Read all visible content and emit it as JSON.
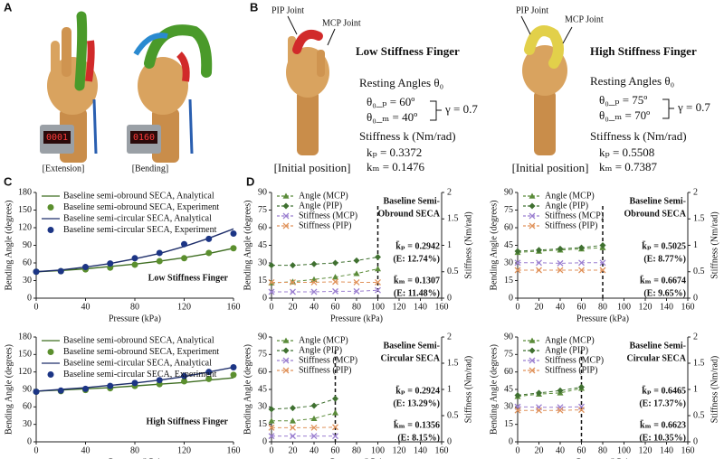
{
  "figure": {
    "panel_labels": [
      "A",
      "B",
      "C",
      "D"
    ],
    "panel_a": {
      "captions": [
        "[Extension]",
        "[Bending]"
      ],
      "displays": [
        "0001",
        "0160"
      ]
    },
    "panel_b": {
      "low": {
        "pip_label": "PIP Joint",
        "mcp_label": "MCP Joint",
        "title": "Low Stiffness Finger",
        "resting": "Resting Angles θ₀",
        "theta_p": "θ₀_ₚ = 60º",
        "theta_m": "θ₀_ₘ = 40º",
        "gamma": "γ = 0.7",
        "stiffness": "Stiffness k (Nm/rad)",
        "kp": "kₚ = 0.3372",
        "km": "kₘ = 0.1476",
        "caption": "[Initial position]"
      },
      "high": {
        "pip_label": "PIP Joint",
        "mcp_label": "MCP Joint",
        "title": "High Stiffness Finger",
        "resting": "Resting Angles θ₀",
        "theta_p": "θ₀_ₚ = 75º",
        "theta_m": "θ₀_ₘ = 70º",
        "gamma": "γ = 0.7",
        "stiffness": "Stiffness k (Nm/rad)",
        "kp": "kₚ = 0.5508",
        "km": "kₘ = 0.7387",
        "caption": "[Initial position]"
      }
    }
  },
  "chart_data": [
    {
      "type": "line",
      "x": [
        0,
        20,
        40,
        60,
        80,
        100,
        120,
        140,
        160
      ],
      "xlim": [
        0,
        160
      ],
      "xticks": [
        0,
        40,
        80,
        120,
        160
      ],
      "ylim": [
        0,
        180
      ],
      "yticks": [
        0,
        30,
        60,
        90,
        120,
        150,
        180
      ],
      "xlabel": "Pressure (kPa)",
      "ylabel": "Bending Angle (degrees)",
      "legend": "upper left",
      "annotations": [
        "Low Stiffness Finger"
      ],
      "series": [
        {
          "name": "Baseline semi-obround SECA, Analytical",
          "color": "#3f6e22",
          "style": "line",
          "values": [
            45,
            47,
            50,
            54,
            58,
            63,
            69,
            76,
            85
          ]
        },
        {
          "name": "Baseline semi-obround SECA, Experiment",
          "color": "#5b8f2e",
          "style": "markers",
          "marker": "circle",
          "values": [
            45,
            46,
            49,
            52,
            57,
            63,
            68,
            77,
            85
          ]
        },
        {
          "name": "Baseline semi-circular SECA, Analytical",
          "color": "#1f2f6b",
          "style": "line",
          "values": [
            45,
            48,
            53,
            59,
            67,
            76,
            88,
            102,
            118
          ]
        },
        {
          "name": "Baseline semi-circular SECA, Experiment",
          "color": "#1c3585",
          "style": "markers",
          "marker": "circle",
          "values": [
            45,
            46,
            53,
            59,
            68,
            77,
            92,
            101,
            110
          ]
        }
      ]
    },
    {
      "type": "line",
      "x": [
        0,
        20,
        40,
        60,
        80,
        100,
        120,
        140,
        160
      ],
      "xlim": [
        0,
        160
      ],
      "xticks": [
        0,
        40,
        80,
        120,
        160
      ],
      "ylim": [
        0,
        180
      ],
      "yticks": [
        0,
        30,
        60,
        90,
        120,
        150,
        180
      ],
      "xlabel": "Pressure (kPa)",
      "ylabel": "Bending Angle (degrees)",
      "legend": "upper left",
      "annotations": [
        "High Stiffness Finger"
      ],
      "series": [
        {
          "name": "Baseline semi-obround SECA, Analytical",
          "color": "#3f6e22",
          "style": "line",
          "values": [
            87,
            89,
            91,
            93,
            96,
            99,
            102,
            106,
            110
          ]
        },
        {
          "name": "Baseline semi-obround SECA, Experiment",
          "color": "#5b8f2e",
          "style": "markers",
          "marker": "circle",
          "values": [
            86,
            87,
            89,
            92,
            96,
            99,
            104,
            108,
            115
          ]
        },
        {
          "name": "Baseline semi-circular SECA, Analytical",
          "color": "#1f2f6b",
          "style": "line",
          "values": [
            87,
            90,
            93,
            97,
            101,
            106,
            112,
            120,
            128
          ]
        },
        {
          "name": "Baseline semi-circular SECA, Experiment",
          "color": "#1c3585",
          "style": "markers",
          "marker": "circle",
          "values": [
            86,
            88,
            91,
            96,
            101,
            106,
            113,
            120,
            128
          ]
        }
      ]
    },
    {
      "type": "line",
      "x": [
        0,
        20,
        40,
        60,
        80,
        100
      ],
      "xlim": [
        0,
        160
      ],
      "xticks": [
        0,
        20,
        40,
        60,
        80,
        100,
        120,
        140,
        160
      ],
      "ylim": [
        0,
        90
      ],
      "yticks": [
        0,
        15,
        30,
        45,
        60,
        75,
        90
      ],
      "y2lim": [
        0,
        2
      ],
      "y2ticks": [
        0,
        0.5,
        1,
        1.5,
        2
      ],
      "xlabel": "Pressure (kPa)",
      "ylabel": "Bending Angle (degrees)",
      "y2label": "Stiffness (Nm/rad)",
      "legend": "upper left",
      "vline": 100,
      "annotations": [
        "Baseline Semi-",
        "Obround SECA",
        "k̄ₚ = 0.2942",
        "(E: 12.74%)",
        "k̄ₘ = 0.1307",
        "(E: 11.48%)"
      ],
      "series": [
        {
          "name": "Angle (MCP)",
          "color": "#5b8c3a",
          "marker": "triangle",
          "dashed": true,
          "values": [
            13,
            14,
            16,
            18,
            21,
            25
          ]
        },
        {
          "name": "Angle (PIP)",
          "color": "#3f7030",
          "marker": "diamond",
          "dashed": true,
          "values": [
            28,
            28,
            29,
            30,
            32,
            35
          ]
        },
        {
          "name": "Stiffness (MCP)",
          "color": "#9b7fd0",
          "marker": "x",
          "dashed": true,
          "axis": "y2",
          "values": [
            0.12,
            0.12,
            0.12,
            0.13,
            0.13,
            0.15
          ]
        },
        {
          "name": "Stiffness (PIP)",
          "color": "#e0925a",
          "marker": "x",
          "dashed": true,
          "axis": "y2",
          "values": [
            0.3,
            0.3,
            0.3,
            0.31,
            0.3,
            0.3
          ]
        }
      ]
    },
    {
      "type": "line",
      "x": [
        0,
        20,
        40,
        60,
        80
      ],
      "xlim": [
        0,
        160
      ],
      "xticks": [
        0,
        20,
        40,
        60,
        80,
        100,
        120,
        140,
        160
      ],
      "ylim": [
        0,
        90
      ],
      "yticks": [
        0,
        15,
        30,
        45,
        60,
        75,
        90
      ],
      "y2lim": [
        0,
        2
      ],
      "y2ticks": [
        0,
        0.5,
        1,
        1.5,
        2
      ],
      "xlabel": "Pressure (kPa)",
      "ylabel": "Bending Angle (degrees)",
      "y2label": "Stiffness (Nm/rad)",
      "legend": "upper left",
      "vline": 80,
      "annotations": [
        "Baseline Semi-",
        "Obround SECA",
        "k̄ₚ = 0.5025",
        "(E: 8.77%)",
        "k̄ₘ = 0.6674",
        "(E: 9.65%)"
      ],
      "series": [
        {
          "name": "Angle (MCP)",
          "color": "#5b8c3a",
          "marker": "triangle",
          "dashed": true,
          "values": [
            39,
            40,
            41,
            42,
            43
          ]
        },
        {
          "name": "Angle (PIP)",
          "color": "#3f7030",
          "marker": "diamond",
          "dashed": true,
          "values": [
            40,
            41,
            42,
            43,
            45
          ]
        },
        {
          "name": "Stiffness (MCP)",
          "color": "#9b7fd0",
          "marker": "x",
          "dashed": true,
          "axis": "y2",
          "values": [
            0.67,
            0.67,
            0.66,
            0.67,
            0.67
          ]
        },
        {
          "name": "Stiffness (PIP)",
          "color": "#e0925a",
          "marker": "x",
          "dashed": true,
          "axis": "y2",
          "values": [
            0.53,
            0.53,
            0.53,
            0.53,
            0.53
          ]
        }
      ]
    },
    {
      "type": "line",
      "x": [
        0,
        20,
        40,
        60
      ],
      "xlim": [
        0,
        160
      ],
      "xticks": [
        0,
        20,
        40,
        60,
        80,
        100,
        120,
        140,
        160
      ],
      "ylim": [
        0,
        90
      ],
      "yticks": [
        0,
        15,
        30,
        45,
        60,
        75,
        90
      ],
      "y2lim": [
        0,
        2
      ],
      "y2ticks": [
        0,
        0.5,
        1,
        1.5,
        2
      ],
      "xlabel": "Pressure (kPa)",
      "ylabel": "Bending Angle (degrees)",
      "y2label": "Stiffness (Nm/rad)",
      "legend": "upper left",
      "vline": 60,
      "annotations": [
        "Baseline Semi-",
        "Circular SECA",
        "k̄ₚ = 0.2924",
        "(E: 13.29%)",
        "k̄ₘ = 0.1356",
        "(E: 8.15%)"
      ],
      "series": [
        {
          "name": "Angle (MCP)",
          "color": "#5b8c3a",
          "marker": "triangle",
          "dashed": true,
          "values": [
            18,
            18,
            20,
            25
          ]
        },
        {
          "name": "Angle (PIP)",
          "color": "#3f7030",
          "marker": "diamond",
          "dashed": true,
          "values": [
            28,
            29,
            31,
            37
          ]
        },
        {
          "name": "Stiffness (MCP)",
          "color": "#9b7fd0",
          "marker": "x",
          "dashed": true,
          "axis": "y2",
          "values": [
            0.11,
            0.11,
            0.11,
            0.11
          ]
        },
        {
          "name": "Stiffness (PIP)",
          "color": "#e0925a",
          "marker": "x",
          "dashed": true,
          "axis": "y2",
          "values": [
            0.27,
            0.27,
            0.27,
            0.28
          ]
        }
      ]
    },
    {
      "type": "line",
      "x": [
        0,
        20,
        40,
        60
      ],
      "xlim": [
        0,
        160
      ],
      "xticks": [
        0,
        20,
        40,
        60,
        80,
        100,
        120,
        140,
        160
      ],
      "ylim": [
        0,
        90
      ],
      "yticks": [
        0,
        15,
        30,
        45,
        60,
        75,
        90
      ],
      "y2lim": [
        0,
        2
      ],
      "y2ticks": [
        0,
        0.5,
        1,
        1.5,
        2
      ],
      "xlabel": "Pressure (kPa)",
      "ylabel": "Bending Angle (degrees)",
      "y2label": "Stiffness (Nm/rad)",
      "legend": "upper left",
      "vline": 60,
      "annotations": [
        "Baseline Semi-",
        "Circular SECA",
        "k̄ₚ = 0.6465",
        "(E: 17.37%)",
        "k̄ₘ = 0.6623",
        "(E: 10.35%)"
      ],
      "series": [
        {
          "name": "Angle (MCP)",
          "color": "#5b8c3a",
          "marker": "triangle",
          "dashed": true,
          "values": [
            39,
            41,
            42,
            46
          ]
        },
        {
          "name": "Angle (PIP)",
          "color": "#3f7030",
          "marker": "diamond",
          "dashed": true,
          "values": [
            40,
            42,
            44,
            47
          ]
        },
        {
          "name": "Stiffness (MCP)",
          "color": "#9b7fd0",
          "marker": "x",
          "dashed": true,
          "axis": "y2",
          "values": [
            0.67,
            0.66,
            0.66,
            0.67
          ]
        },
        {
          "name": "Stiffness (PIP)",
          "color": "#e0925a",
          "marker": "x",
          "dashed": true,
          "axis": "y2",
          "values": [
            0.6,
            0.6,
            0.6,
            0.61
          ]
        }
      ]
    }
  ]
}
